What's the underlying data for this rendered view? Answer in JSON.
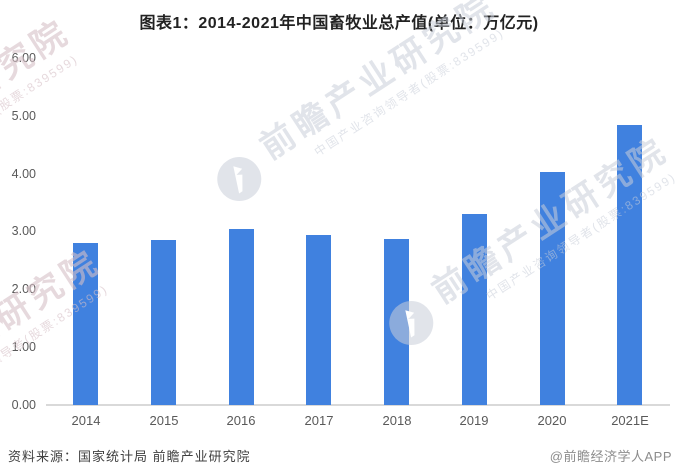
{
  "title": "图表1：2014-2021年中国畜牧业总产值(单位：万亿元)",
  "chart_data": {
    "type": "bar",
    "categories": [
      "2014",
      "2015",
      "2016",
      "2017",
      "2018",
      "2019",
      "2020",
      "2021E"
    ],
    "values": [
      2.81,
      2.86,
      3.05,
      2.95,
      2.87,
      3.31,
      4.03,
      4.85
    ],
    "title": "图表1：2014-2021年中国畜牧业总产值(单位：万亿元)",
    "unit": "万亿元",
    "xlabel": "",
    "ylabel": "",
    "ylim": [
      0,
      6
    ],
    "y_ticks": [
      "6.00",
      "5.00",
      "4.00",
      "3.00",
      "2.00",
      "1.00",
      "0.00"
    ],
    "grid": false,
    "legend": "none",
    "bar_color": "#4081DF",
    "axis_line_color": "#d9d9d9",
    "tick_label_color": "#595959"
  },
  "footer": {
    "source": "资料来源：国家统计局 前瞻产业研究院",
    "credit": "@前瞻经济学人APP"
  },
  "watermark": {
    "logo": "qianzhan-bird-logo",
    "big_text": "前瞻产业研究院",
    "small_text": "中国产业咨询领导者(股票:839599)",
    "color_gray": "rgba(200,205,216,0.55)",
    "color_pink": "rgba(213,192,199,0.6)"
  }
}
